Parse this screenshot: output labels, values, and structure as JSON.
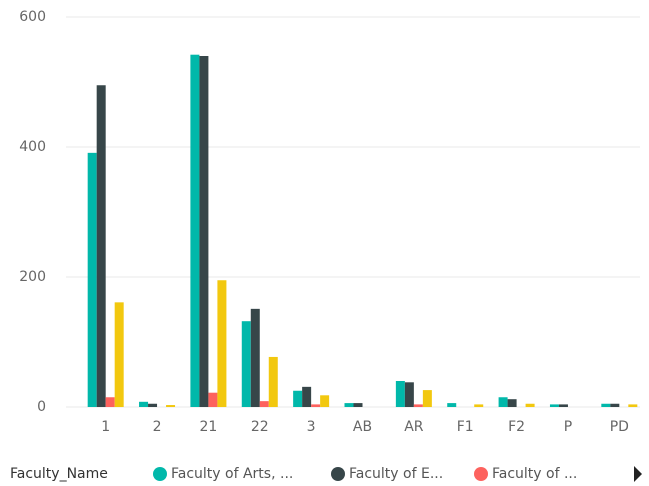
{
  "chart_data": {
    "type": "bar",
    "categories": [
      "1",
      "2",
      "21",
      "22",
      "3",
      "AB",
      "AR",
      "F1",
      "F2",
      "P",
      "PD"
    ],
    "legend_title": "Faculty_Name",
    "series": [
      {
        "name": "Faculty of Arts, ...",
        "color": "#01b8aa",
        "values": [
          391,
          8,
          542,
          132,
          25,
          6,
          40,
          6,
          15,
          4,
          5
        ]
      },
      {
        "name": "Faculty of E...",
        "color": "#374649",
        "values": [
          495,
          5,
          540,
          151,
          31,
          6,
          38,
          0,
          12,
          4,
          5
        ]
      },
      {
        "name": "Faculty of ...",
        "color": "#fd625e",
        "values": [
          15,
          0,
          22,
          9,
          4,
          0,
          4,
          0,
          0,
          0,
          0
        ]
      },
      {
        "color": "#f2c80f",
        "values": [
          161,
          3,
          195,
          77,
          18,
          0,
          26,
          4,
          5,
          0,
          4
        ]
      }
    ],
    "ylim": [
      0,
      600
    ],
    "yticks": [
      0,
      200,
      400,
      600
    ],
    "grid": true,
    "legend": "bottom"
  }
}
